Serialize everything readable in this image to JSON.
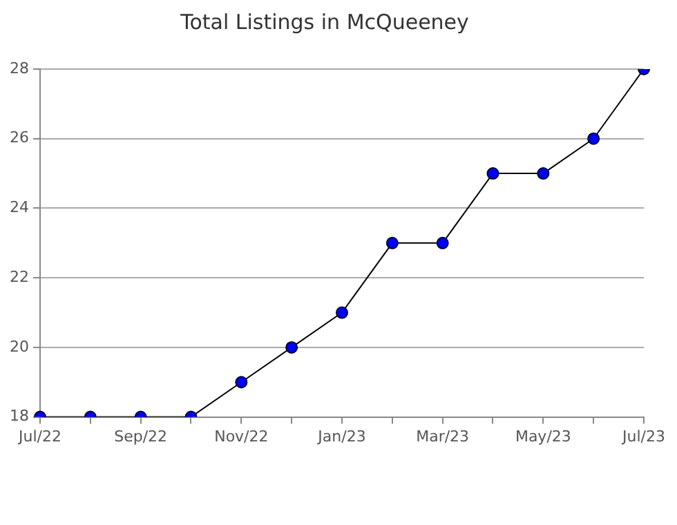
{
  "chart_data": {
    "type": "line",
    "title": "Total Listings in McQueeney",
    "categories": [
      "Jul/22",
      null,
      "Sep/22",
      null,
      "Nov/22",
      null,
      "Jan/23",
      null,
      "Mar/23",
      null,
      "May/23",
      null,
      "Jul/23"
    ],
    "series": [
      {
        "color": "#000000",
        "values": [
          18,
          18,
          18,
          18,
          19,
          20,
          21,
          23,
          23,
          25,
          25,
          26,
          28
        ]
      }
    ],
    "ylim": [
      18,
      28
    ],
    "yticks": [
      18,
      20,
      22,
      24,
      26,
      28
    ],
    "grid": "y",
    "legend": false,
    "marker": "circle",
    "line_style": "solid"
  }
}
